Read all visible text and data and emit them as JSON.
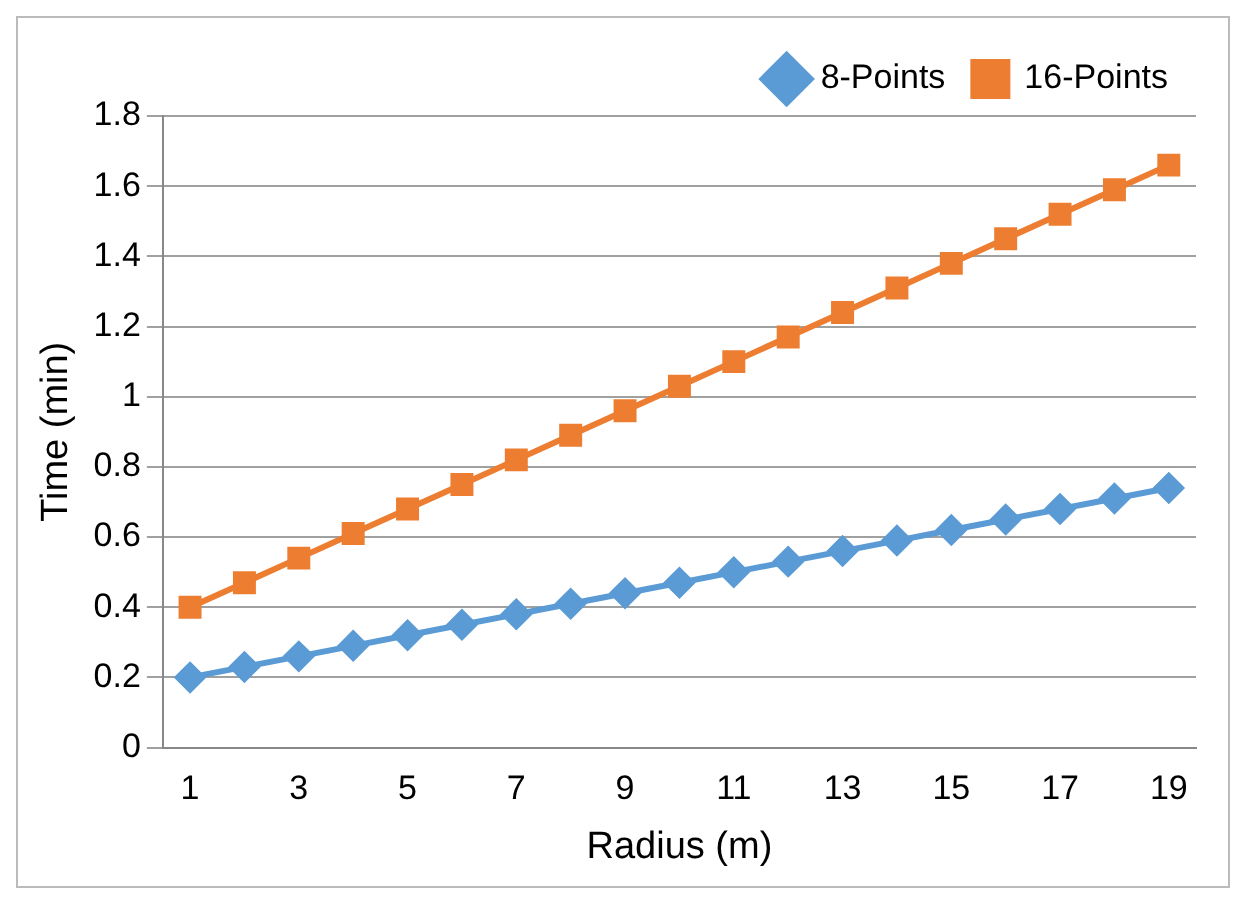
{
  "chart_data": {
    "type": "line",
    "xlabel": "Radius (m)",
    "ylabel": "Time (min)",
    "x": [
      1,
      2,
      3,
      4,
      5,
      6,
      7,
      8,
      9,
      10,
      11,
      12,
      13,
      14,
      15,
      16,
      17,
      18,
      19
    ],
    "xlim": [
      0.5,
      19.5
    ],
    "xticks": [
      1,
      3,
      5,
      7,
      9,
      11,
      13,
      15,
      17,
      19
    ],
    "series": [
      {
        "name": "8-Points",
        "color": "#5b9bd5",
        "marker": "diamond",
        "values": [
          0.2,
          0.23,
          0.26,
          0.29,
          0.32,
          0.35,
          0.38,
          0.41,
          0.44,
          0.47,
          0.5,
          0.53,
          0.56,
          0.59,
          0.62,
          0.65,
          0.68,
          0.71,
          0.74
        ]
      },
      {
        "name": "16-Points",
        "color": "#ed7d31",
        "marker": "square",
        "values": [
          0.4,
          0.47,
          0.54,
          0.61,
          0.68,
          0.75,
          0.82,
          0.89,
          0.96,
          1.03,
          1.1,
          1.17,
          1.24,
          1.31,
          1.38,
          1.45,
          1.52,
          1.59,
          1.66
        ]
      }
    ],
    "ylim": [
      0,
      1.8
    ],
    "yticks": [
      0,
      0.2,
      0.4,
      0.6,
      0.8,
      1,
      1.2,
      1.4,
      1.6,
      1.8
    ],
    "grid": "y",
    "legend": "top right"
  }
}
